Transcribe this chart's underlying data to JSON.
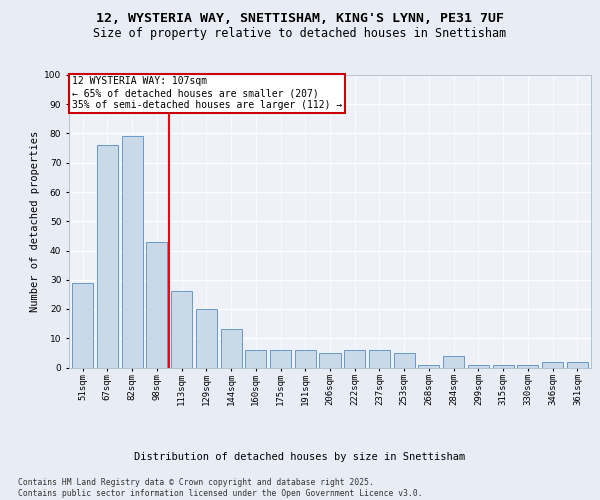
{
  "title_line1": "12, WYSTERIA WAY, SNETTISHAM, KING'S LYNN, PE31 7UF",
  "title_line2": "Size of property relative to detached houses in Snettisham",
  "xlabel": "Distribution of detached houses by size in Snettisham",
  "ylabel": "Number of detached properties",
  "categories": [
    "51sqm",
    "67sqm",
    "82sqm",
    "98sqm",
    "113sqm",
    "129sqm",
    "144sqm",
    "160sqm",
    "175sqm",
    "191sqm",
    "206sqm",
    "222sqm",
    "237sqm",
    "253sqm",
    "268sqm",
    "284sqm",
    "299sqm",
    "315sqm",
    "330sqm",
    "346sqm",
    "361sqm"
  ],
  "values": [
    29,
    76,
    79,
    43,
    26,
    20,
    13,
    6,
    6,
    6,
    5,
    6,
    6,
    5,
    1,
    4,
    1,
    1,
    1,
    2,
    2
  ],
  "bar_color": "#c9d9e8",
  "bar_edge_color": "#6699cc",
  "red_line_x": 3.5,
  "annotation_line1": "12 WYSTERIA WAY: 107sqm",
  "annotation_line2": "← 65% of detached houses are smaller (207)",
  "annotation_line3": "35% of semi-detached houses are larger (112) →",
  "annotation_box_edgecolor": "#cc0000",
  "ylim": [
    0,
    100
  ],
  "yticks": [
    0,
    10,
    20,
    30,
    40,
    50,
    60,
    70,
    80,
    90,
    100
  ],
  "bg_color": "#e8edf5",
  "plot_bg_color": "#eef2f8",
  "footer_line1": "Contains HM Land Registry data © Crown copyright and database right 2025.",
  "footer_line2": "Contains public sector information licensed under the Open Government Licence v3.0.",
  "title_fontsize": 9.5,
  "subtitle_fontsize": 8.5,
  "axis_label_fontsize": 7.5,
  "tick_fontsize": 6.5,
  "annotation_fontsize": 7,
  "footer_fontsize": 5.8
}
